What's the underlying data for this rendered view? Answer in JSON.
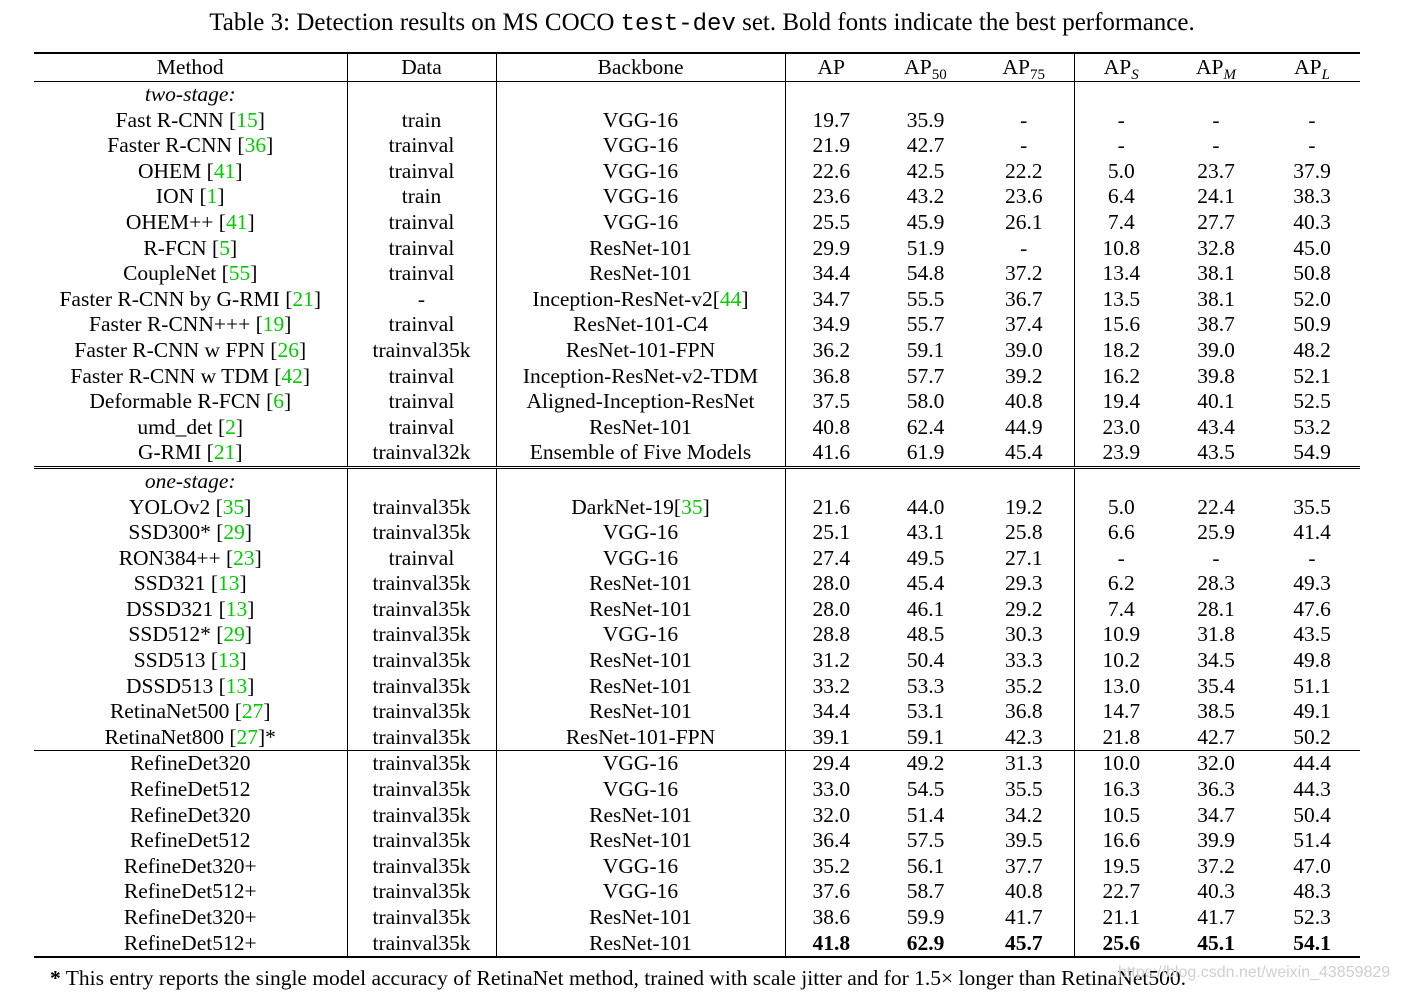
{
  "caption": {
    "prefix": "Table 3: Detection results on MS COCO ",
    "mono": "test-dev",
    "suffix": " set. Bold fonts indicate the best performance."
  },
  "headers": {
    "method": "Method",
    "data": "Data",
    "backbone": "Backbone",
    "ap": "AP",
    "ap50": "AP",
    "ap50_sub": "50",
    "ap75": "AP",
    "ap75_sub": "75",
    "aps": "AP",
    "aps_sub": "S",
    "apm": "AP",
    "apm_sub": "M",
    "apl": "AP",
    "apl_sub": "L"
  },
  "sections": {
    "two_stage": "two-stage:",
    "one_stage": "one-stage:"
  },
  "two_stage_rows": [
    {
      "method": "Fast R-CNN [",
      "ref": "15",
      "close": "]",
      "data": "train",
      "backbone": "VGG-16",
      "ap": "19.7",
      "ap50": "35.9",
      "ap75": "-",
      "aps": "-",
      "apm": "-",
      "apl": "-"
    },
    {
      "method": "Faster R-CNN [",
      "ref": "36",
      "close": "]",
      "data": "trainval",
      "backbone": "VGG-16",
      "ap": "21.9",
      "ap50": "42.7",
      "ap75": "-",
      "aps": "-",
      "apm": "-",
      "apl": "-"
    },
    {
      "method": "OHEM [",
      "ref": "41",
      "close": "]",
      "data": "trainval",
      "backbone": "VGG-16",
      "ap": "22.6",
      "ap50": "42.5",
      "ap75": "22.2",
      "aps": "5.0",
      "apm": "23.7",
      "apl": "37.9"
    },
    {
      "method": "ION [",
      "ref": "1",
      "close": "]",
      "data": "train",
      "backbone": "VGG-16",
      "ap": "23.6",
      "ap50": "43.2",
      "ap75": "23.6",
      "aps": "6.4",
      "apm": "24.1",
      "apl": "38.3"
    },
    {
      "method": "OHEM++ [",
      "ref": "41",
      "close": "]",
      "data": "trainval",
      "backbone": "VGG-16",
      "ap": "25.5",
      "ap50": "45.9",
      "ap75": "26.1",
      "aps": "7.4",
      "apm": "27.7",
      "apl": "40.3"
    },
    {
      "method": "R-FCN [",
      "ref": "5",
      "close": "]",
      "data": "trainval",
      "backbone": "ResNet-101",
      "ap": "29.9",
      "ap50": "51.9",
      "ap75": "-",
      "aps": "10.8",
      "apm": "32.8",
      "apl": "45.0"
    },
    {
      "method": "CoupleNet [",
      "ref": "55",
      "close": "]",
      "data": "trainval",
      "backbone": "ResNet-101",
      "ap": "34.4",
      "ap50": "54.8",
      "ap75": "37.2",
      "aps": "13.4",
      "apm": "38.1",
      "apl": "50.8"
    },
    {
      "method": "Faster R-CNN by G-RMI [",
      "ref": "21",
      "close": "]",
      "data": "-",
      "backbone": "Inception-ResNet-v2[",
      "backbone_ref": "44",
      "backbone_close": "]",
      "ap": "34.7",
      "ap50": "55.5",
      "ap75": "36.7",
      "aps": "13.5",
      "apm": "38.1",
      "apl": "52.0"
    },
    {
      "method": "Faster R-CNN+++ [",
      "ref": "19",
      "close": "]",
      "data": "trainval",
      "backbone": "ResNet-101-C4",
      "ap": "34.9",
      "ap50": "55.7",
      "ap75": "37.4",
      "aps": "15.6",
      "apm": "38.7",
      "apl": "50.9"
    },
    {
      "method": "Faster R-CNN w FPN [",
      "ref": "26",
      "close": "]",
      "data": "trainval35k",
      "backbone": "ResNet-101-FPN",
      "ap": "36.2",
      "ap50": "59.1",
      "ap75": "39.0",
      "aps": "18.2",
      "apm": "39.0",
      "apl": "48.2"
    },
    {
      "method": "Faster R-CNN w TDM [",
      "ref": "42",
      "close": "]",
      "data": "trainval",
      "backbone": "Inception-ResNet-v2-TDM",
      "ap": "36.8",
      "ap50": "57.7",
      "ap75": "39.2",
      "aps": "16.2",
      "apm": "39.8",
      "apl": "52.1"
    },
    {
      "method": "Deformable R-FCN [",
      "ref": "6",
      "close": "]",
      "data": "trainval",
      "backbone": "Aligned-Inception-ResNet",
      "ap": "37.5",
      "ap50": "58.0",
      "ap75": "40.8",
      "aps": "19.4",
      "apm": "40.1",
      "apl": "52.5"
    },
    {
      "method": "umd_det [",
      "ref": "2",
      "close": "]",
      "data": "trainval",
      "backbone": "ResNet-101",
      "ap": "40.8",
      "ap50": "62.4",
      "ap75": "44.9",
      "aps": "23.0",
      "apm": "43.4",
      "apl": "53.2"
    },
    {
      "method": "G-RMI [",
      "ref": "21",
      "close": "]",
      "data": "trainval32k",
      "backbone": "Ensemble of Five Models",
      "ap": "41.6",
      "ap50": "61.9",
      "ap75": "45.4",
      "aps": "23.9",
      "apm": "43.5",
      "apl": "54.9"
    }
  ],
  "one_stage_rows": [
    {
      "method": "YOLOv2 [",
      "ref": "35",
      "close": "]",
      "data": "trainval35k",
      "backbone": "DarkNet-19[",
      "backbone_ref": "35",
      "backbone_close": "]",
      "ap": "21.6",
      "ap50": "44.0",
      "ap75": "19.2",
      "aps": "5.0",
      "apm": "22.4",
      "apl": "35.5"
    },
    {
      "method": "SSD300* [",
      "ref": "29",
      "close": "]",
      "data": "trainval35k",
      "backbone": "VGG-16",
      "ap": "25.1",
      "ap50": "43.1",
      "ap75": "25.8",
      "aps": "6.6",
      "apm": "25.9",
      "apl": "41.4"
    },
    {
      "method": "RON384++ [",
      "ref": "23",
      "close": "]",
      "data": "trainval",
      "backbone": "VGG-16",
      "ap": "27.4",
      "ap50": "49.5",
      "ap75": "27.1",
      "aps": "-",
      "apm": "-",
      "apl": "-"
    },
    {
      "method": "SSD321 [",
      "ref": "13",
      "close": "]",
      "data": "trainval35k",
      "backbone": "ResNet-101",
      "ap": "28.0",
      "ap50": "45.4",
      "ap75": "29.3",
      "aps": "6.2",
      "apm": "28.3",
      "apl": "49.3"
    },
    {
      "method": "DSSD321 [",
      "ref": "13",
      "close": "]",
      "data": "trainval35k",
      "backbone": "ResNet-101",
      "ap": "28.0",
      "ap50": "46.1",
      "ap75": "29.2",
      "aps": "7.4",
      "apm": "28.1",
      "apl": "47.6"
    },
    {
      "method": "SSD512* [",
      "ref": "29",
      "close": "]",
      "data": "trainval35k",
      "backbone": "VGG-16",
      "ap": "28.8",
      "ap50": "48.5",
      "ap75": "30.3",
      "aps": "10.9",
      "apm": "31.8",
      "apl": "43.5"
    },
    {
      "method": "SSD513 [",
      "ref": "13",
      "close": "]",
      "data": "trainval35k",
      "backbone": "ResNet-101",
      "ap": "31.2",
      "ap50": "50.4",
      "ap75": "33.3",
      "aps": "10.2",
      "apm": "34.5",
      "apl": "49.8"
    },
    {
      "method": "DSSD513 [",
      "ref": "13",
      "close": "]",
      "data": "trainval35k",
      "backbone": "ResNet-101",
      "ap": "33.2",
      "ap50": "53.3",
      "ap75": "35.2",
      "aps": "13.0",
      "apm": "35.4",
      "apl": "51.1"
    },
    {
      "method": "RetinaNet500 [",
      "ref": "27",
      "close": "]",
      "data": "trainval35k",
      "backbone": "ResNet-101",
      "ap": "34.4",
      "ap50": "53.1",
      "ap75": "36.8",
      "aps": "14.7",
      "apm": "38.5",
      "apl": "49.1"
    },
    {
      "method": "RetinaNet800 [",
      "ref": "27",
      "close": "]*",
      "data": "trainval35k",
      "backbone": "ResNet-101-FPN",
      "ap": "39.1",
      "ap50": "59.1",
      "ap75": "42.3",
      "aps": "21.8",
      "apm": "42.7",
      "apl": "50.2"
    }
  ],
  "refinedet_rows": [
    {
      "method": "RefineDet320",
      "data": "trainval35k",
      "backbone": "VGG-16",
      "ap": "29.4",
      "ap50": "49.2",
      "ap75": "31.3",
      "aps": "10.0",
      "apm": "32.0",
      "apl": "44.4"
    },
    {
      "method": "RefineDet512",
      "data": "trainval35k",
      "backbone": "VGG-16",
      "ap": "33.0",
      "ap50": "54.5",
      "ap75": "35.5",
      "aps": "16.3",
      "apm": "36.3",
      "apl": "44.3"
    },
    {
      "method": "RefineDet320",
      "data": "trainval35k",
      "backbone": "ResNet-101",
      "ap": "32.0",
      "ap50": "51.4",
      "ap75": "34.2",
      "aps": "10.5",
      "apm": "34.7",
      "apl": "50.4"
    },
    {
      "method": "RefineDet512",
      "data": "trainval35k",
      "backbone": "ResNet-101",
      "ap": "36.4",
      "ap50": "57.5",
      "ap75": "39.5",
      "aps": "16.6",
      "apm": "39.9",
      "apl": "51.4"
    },
    {
      "method": "RefineDet320+",
      "data": "trainval35k",
      "backbone": "VGG-16",
      "ap": "35.2",
      "ap50": "56.1",
      "ap75": "37.7",
      "aps": "19.5",
      "apm": "37.2",
      "apl": "47.0"
    },
    {
      "method": "RefineDet512+",
      "data": "trainval35k",
      "backbone": "VGG-16",
      "ap": "37.6",
      "ap50": "58.7",
      "ap75": "40.8",
      "aps": "22.7",
      "apm": "40.3",
      "apl": "48.3"
    },
    {
      "method": "RefineDet320+",
      "data": "trainval35k",
      "backbone": "ResNet-101",
      "ap": "38.6",
      "ap50": "59.9",
      "ap75": "41.7",
      "aps": "21.1",
      "apm": "41.7",
      "apl": "52.3"
    },
    {
      "method": "RefineDet512+",
      "data": "trainval35k",
      "backbone": "ResNet-101",
      "ap": "41.8",
      "ap50": "62.9",
      "ap75": "45.7",
      "aps": "25.6",
      "apm": "45.1",
      "apl": "54.1",
      "bold": true
    }
  ],
  "footnote": {
    "star": "*",
    "text": " This entry reports the single model accuracy of RetinaNet method, trained with scale jitter and for 1.5× longer than RetinaNet500."
  },
  "watermark": "https://blog.csdn.net/weixin_43859829",
  "colors": {
    "reference_link": "#00cc00",
    "text": "#000000"
  }
}
